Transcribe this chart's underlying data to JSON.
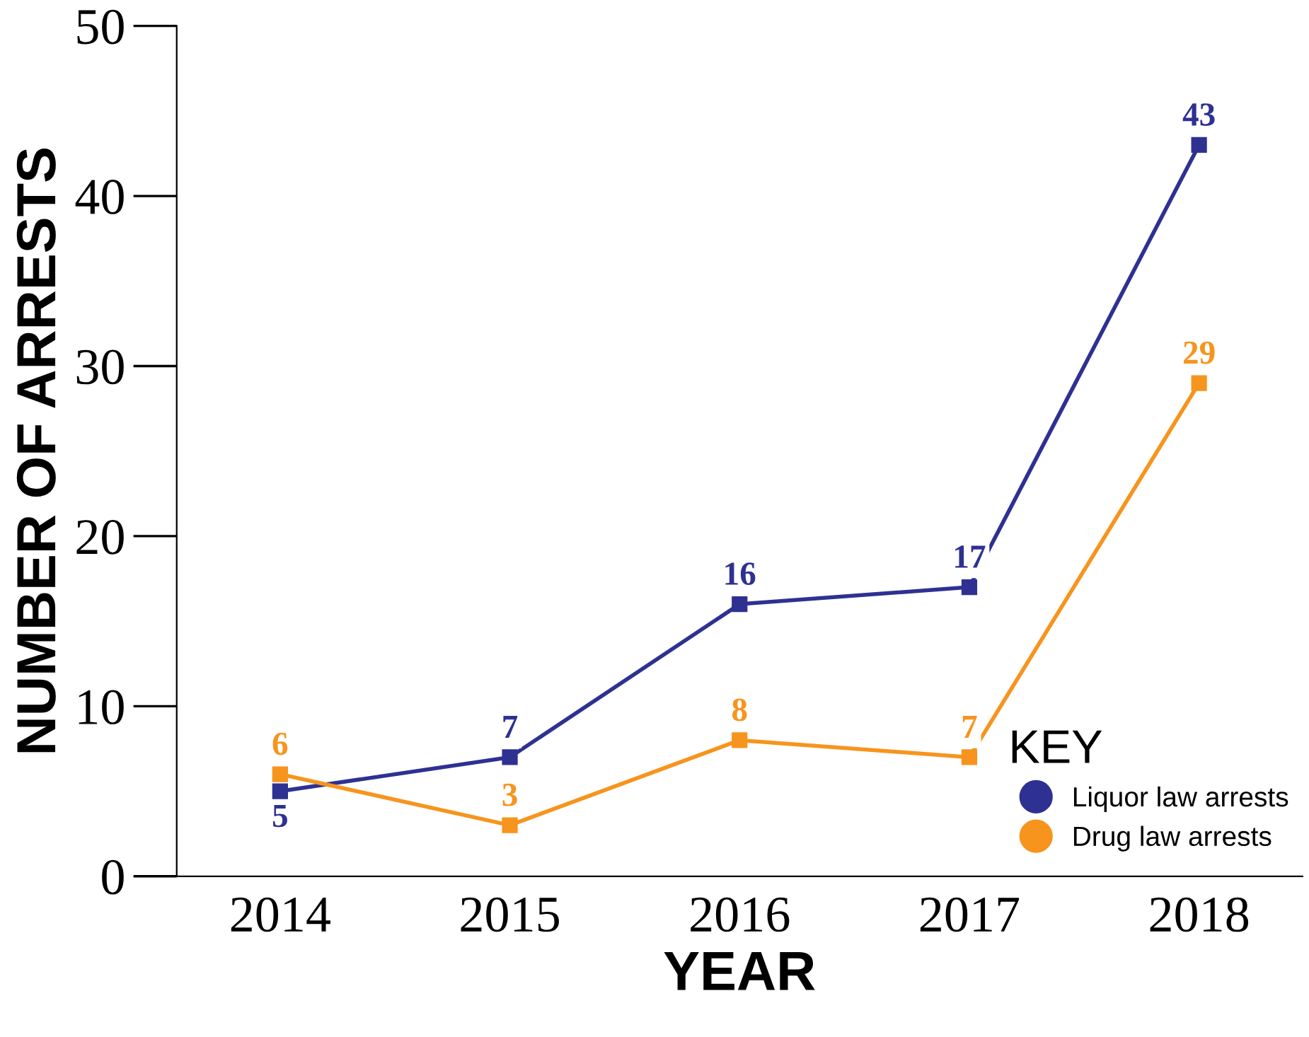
{
  "chart_data": {
    "type": "line",
    "xlabel": "YEAR",
    "ylabel": "NUMBER OF ARRESTS",
    "legend_title": "KEY",
    "categories": [
      "2014",
      "2015",
      "2016",
      "2017",
      "2018"
    ],
    "series": [
      {
        "name": "Liquor law arrests",
        "color": "#2e3192",
        "values": [
          5,
          7,
          16,
          17,
          43
        ]
      },
      {
        "name": "Drug law arrests",
        "color": "#f7941d",
        "values": [
          6,
          3,
          8,
          7,
          29
        ]
      }
    ],
    "ylim": [
      0,
      50
    ],
    "yticks": [
      0,
      10,
      20,
      30,
      40,
      50
    ],
    "marker": "square",
    "line_style": "solid",
    "data_labels": true,
    "legend": "bottom right",
    "grid": false
  }
}
